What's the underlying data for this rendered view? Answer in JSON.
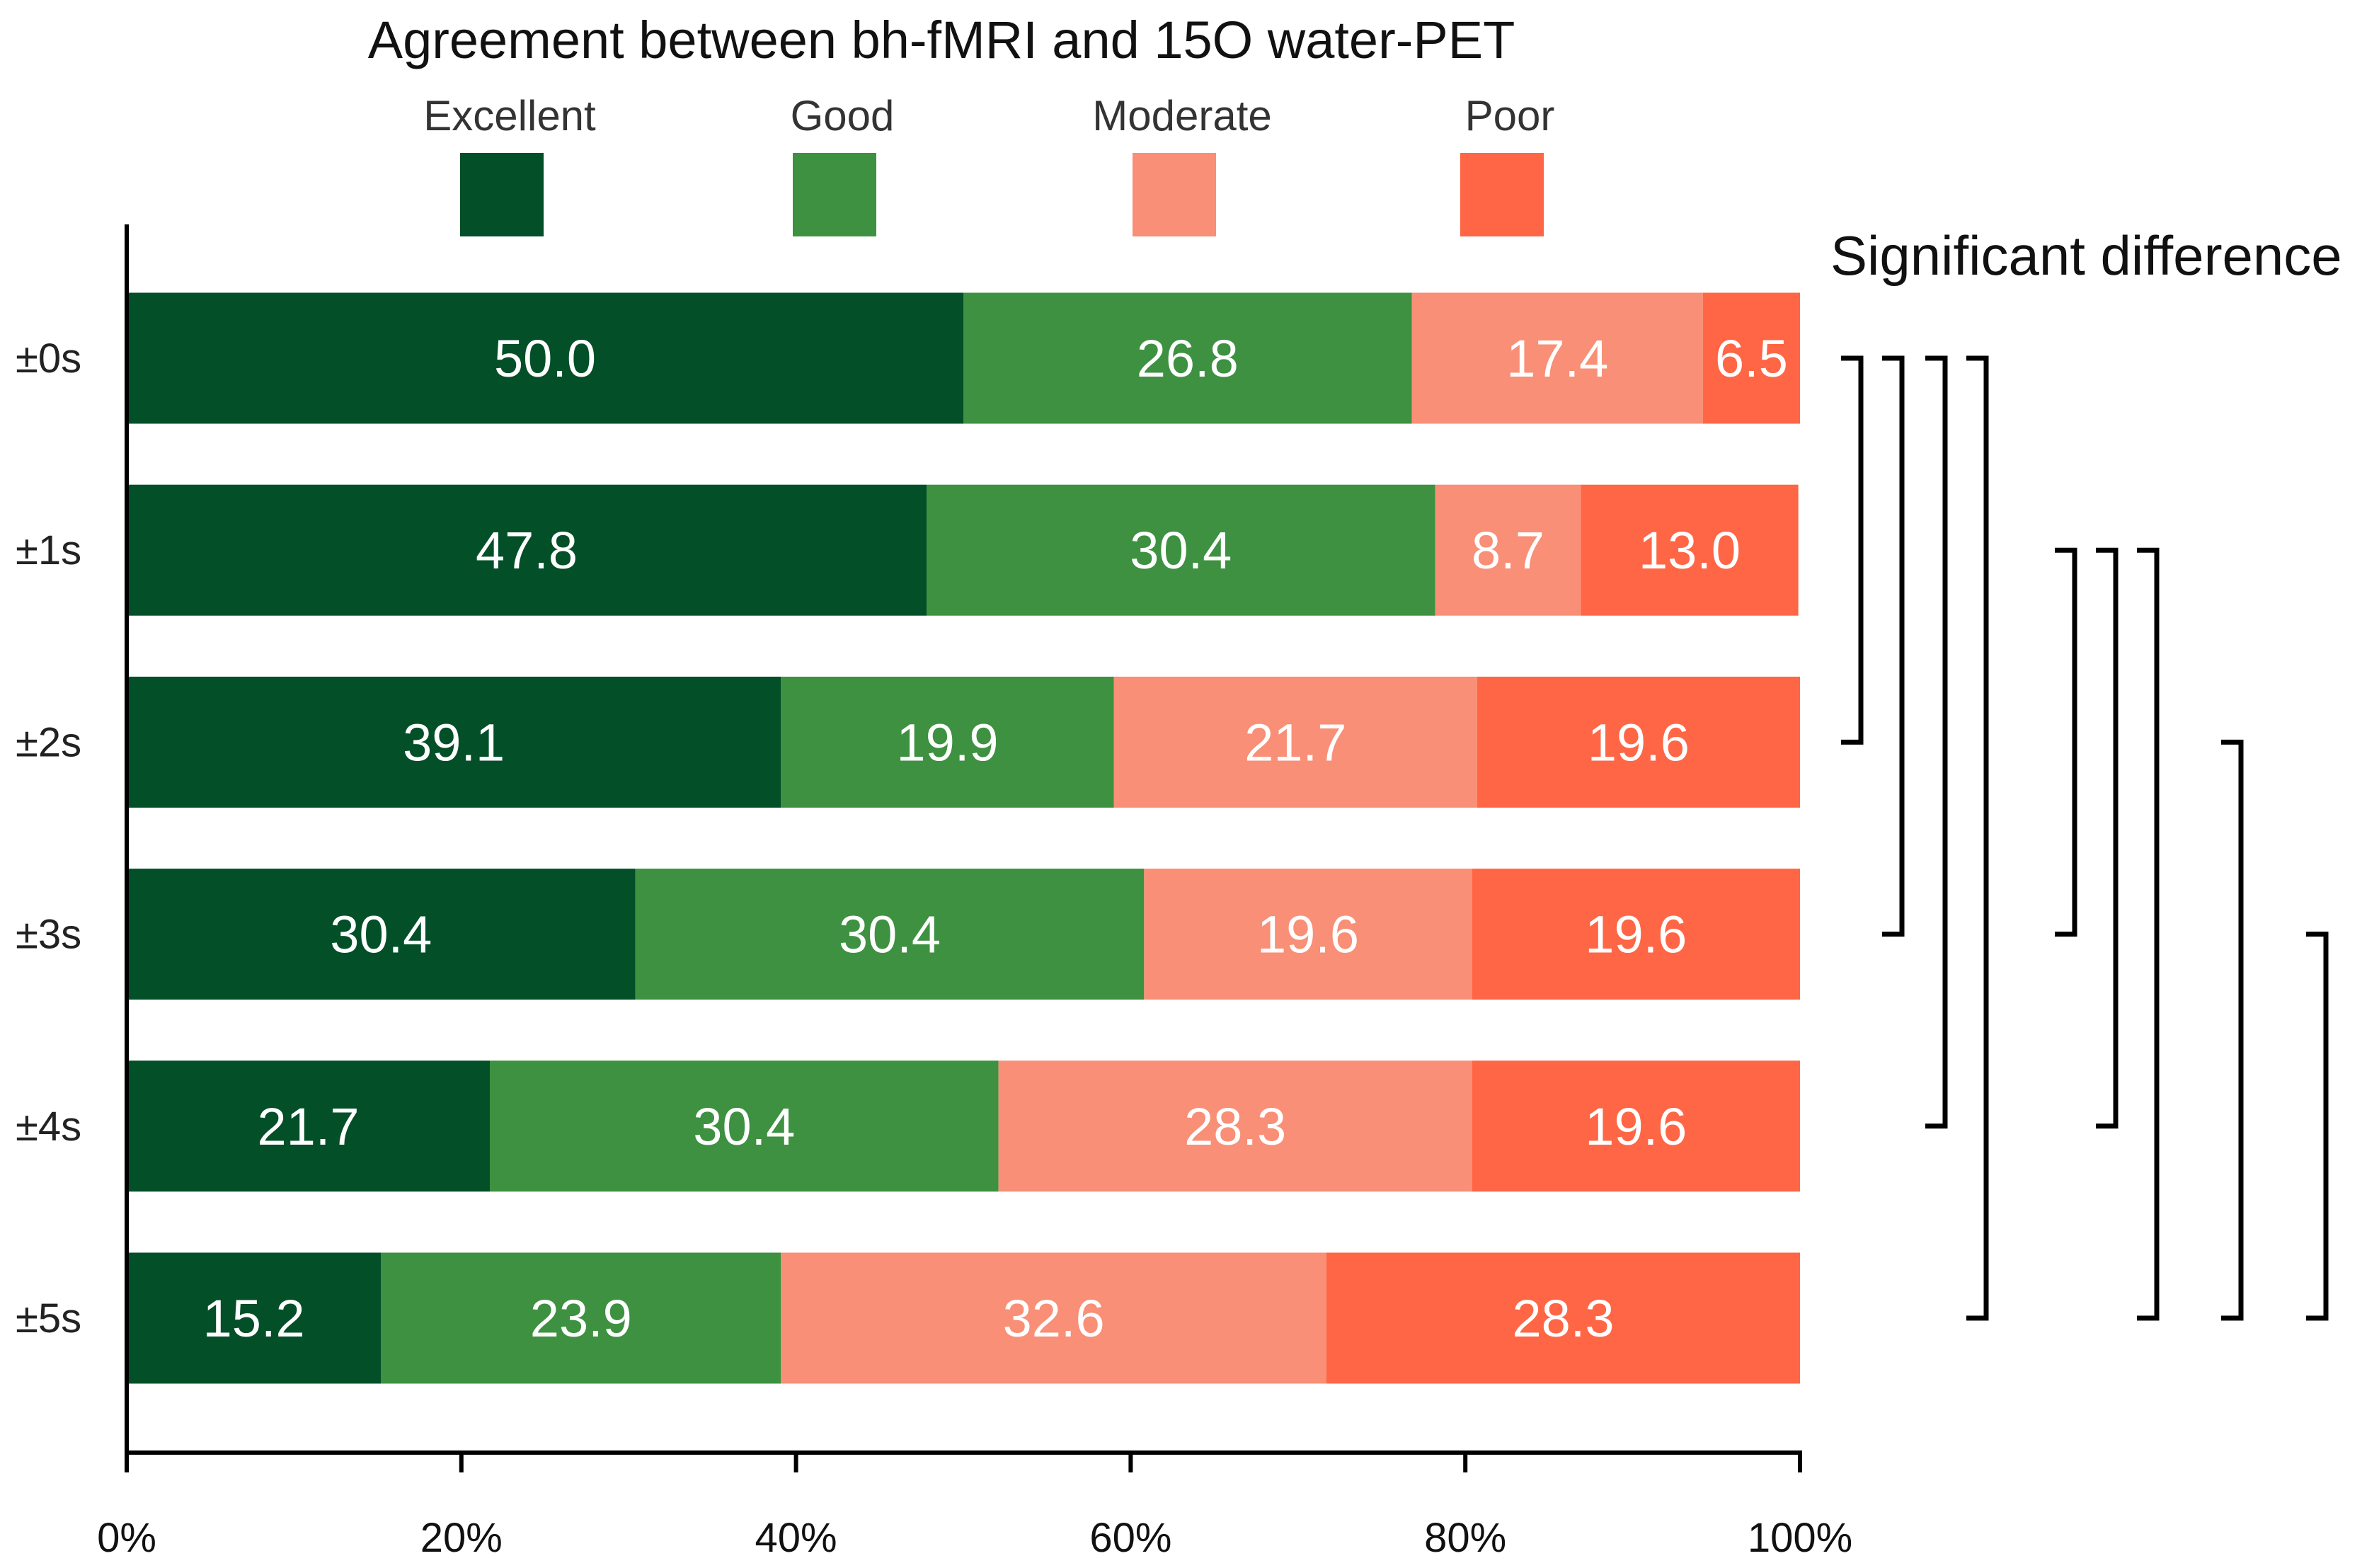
{
  "chart_data": {
    "type": "bar",
    "orientation": "horizontal-stacked",
    "title": "Agreement between bh-fMRI and 15O water-PET",
    "categories": [
      "±0s",
      "±1s",
      "±2s",
      "±3s",
      "±4s",
      "±5s"
    ],
    "series": [
      {
        "name": "Excellent",
        "color": "#024f28",
        "values": [
          50.0,
          47.8,
          39.1,
          30.4,
          21.7,
          15.2
        ]
      },
      {
        "name": "Good",
        "color": "#3d9140",
        "values": [
          26.8,
          30.4,
          19.9,
          30.4,
          30.4,
          23.9
        ]
      },
      {
        "name": "Moderate",
        "color": "#f88f76",
        "values": [
          17.4,
          8.7,
          21.7,
          19.6,
          28.3,
          32.6
        ]
      },
      {
        "name": "Poor",
        "color": "#ff6645",
        "values": [
          6.5,
          13.0,
          19.6,
          19.6,
          19.6,
          28.3
        ]
      }
    ],
    "xlim": [
      0,
      100
    ],
    "xticks": [
      "0%",
      "20%",
      "40%",
      "60%",
      "80%",
      "100%"
    ],
    "xtick_values": [
      0,
      20,
      40,
      60,
      80,
      100
    ],
    "legend_placement": "top",
    "significance_title": "Significant difference",
    "significance_pairs": [
      [
        0,
        2
      ],
      [
        0,
        3
      ],
      [
        0,
        4
      ],
      [
        0,
        5
      ],
      [
        1,
        3
      ],
      [
        1,
        4
      ],
      [
        1,
        5
      ],
      [
        2,
        5
      ],
      [
        3,
        5
      ]
    ]
  }
}
